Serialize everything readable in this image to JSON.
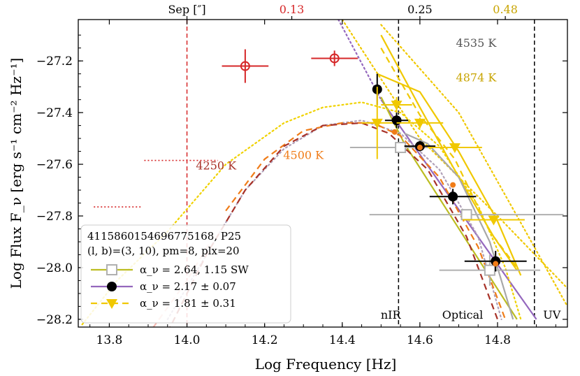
{
  "chart_data": {
    "type": "scatter",
    "title": "",
    "xlabel": "Log Frequency [Hz]",
    "ylabel": "Log Flux F_ν [erg s⁻¹ cm⁻² Hz⁻¹]",
    "xlim": [
      13.72,
      14.98
    ],
    "ylim": [
      -28.23,
      -27.04
    ],
    "x_ticks": [
      13.8,
      14.0,
      14.2,
      14.4,
      14.6,
      14.8
    ],
    "x_tick_labels": [
      "13.8",
      "14.0",
      "14.2",
      "14.4",
      "14.6",
      "14.8"
    ],
    "y_ticks": [
      -27.2,
      -27.4,
      -27.6,
      -27.8,
      -28.0,
      -28.2
    ],
    "y_tick_labels": [
      "−27.2",
      "−27.4",
      "−27.6",
      "−27.8",
      "−28.0",
      "−28.2"
    ],
    "top_axis": {
      "label": "Sep [″]",
      "ticks": [
        {
          "x": 14.0,
          "label": "Sep [″]",
          "color": "#000000"
        },
        {
          "x": 14.27,
          "label": "0.13",
          "color": "#d62728"
        },
        {
          "x": 14.6,
          "label": "0.25",
          "color": "#000000"
        },
        {
          "x": 14.82,
          "label": "0.48",
          "color": "#c8a400"
        }
      ]
    },
    "vlines": [
      {
        "x": 14.0,
        "color": "#d62728",
        "style": "dashed"
      },
      {
        "x": 14.545,
        "color": "#000000",
        "style": "dashed"
      },
      {
        "x": 14.895,
        "color": "#000000",
        "style": "dashed"
      }
    ],
    "band_labels": [
      {
        "text": "nIR",
        "x": 14.525
      },
      {
        "text": "Optical",
        "x": 14.71
      },
      {
        "text": "UV",
        "x": 14.94
      }
    ],
    "temperature_labels": [
      {
        "text": "4535 K",
        "x": 14.745,
        "y": -27.145,
        "color": "#555555"
      },
      {
        "text": "4874 K",
        "x": 14.745,
        "y": -27.28,
        "color": "#c8a400"
      },
      {
        "text": "4500 K",
        "x": 14.3,
        "y": -27.58,
        "color": "#f07c18"
      },
      {
        "text": "4250 K",
        "x": 14.075,
        "y": -27.62,
        "color": "#a83228"
      }
    ],
    "series": [
      {
        "name": "upper limits (red)",
        "color": "#d62728",
        "marker": "dotted-hline",
        "points": [
          {
            "x0": 13.89,
            "x1": 14.08,
            "y": -27.585
          },
          {
            "x0": 13.76,
            "x1": 13.885,
            "y": -27.765
          }
        ]
      },
      {
        "name": "red circles",
        "color": "#d62728",
        "marker": "open-circle",
        "points": [
          {
            "x": 14.15,
            "y": -27.22,
            "xerr": 0.06,
            "yerr": 0.065
          },
          {
            "x": 14.38,
            "y": -27.19,
            "xerr": 0.06,
            "yerr": 0.03
          }
        ]
      },
      {
        "name": "SW",
        "label": "α_ν = 2.64, 1.15 SW",
        "color": "#b0b0b0",
        "marker": "open-square",
        "points": [
          {
            "x": 14.55,
            "y": -27.535,
            "xerr": 0.13,
            "yerr": 0.02
          },
          {
            "x": 14.72,
            "y": -27.795,
            "xerr": 0.25,
            "yerr": 0.02
          },
          {
            "x": 14.78,
            "y": -28.01,
            "xerr": 0.13,
            "yerr": 0.06
          }
        ]
      },
      {
        "name": "black",
        "label": "α_ν = 2.17 ± 0.07",
        "color": "#000000",
        "marker": "filled-circle",
        "points": [
          {
            "x": 14.49,
            "y": -27.31,
            "xerr": 0.0,
            "yerr": 0.06
          },
          {
            "x": 14.54,
            "y": -27.43,
            "xerr": 0.03,
            "yerr": 0.03
          },
          {
            "x": 14.6,
            "y": -27.53,
            "xerr": 0.04,
            "yerr": 0.02
          },
          {
            "x": 14.685,
            "y": -27.725,
            "xerr": 0.06,
            "yerr": 0.03
          },
          {
            "x": 14.795,
            "y": -27.975,
            "xerr": 0.08,
            "yerr": 0.04
          }
        ]
      },
      {
        "name": "yellow",
        "label": "α_ν = 1.81 ± 0.31",
        "color": "#f0c800",
        "marker": "filled-triangle-down",
        "points": [
          {
            "x": 14.49,
            "y": -27.44,
            "xerr": 0.04,
            "yerr": 0.14
          },
          {
            "x": 14.54,
            "y": -27.37,
            "xerr": 0.04,
            "yerr": 0.03
          },
          {
            "x": 14.6,
            "y": -27.44,
            "xerr": 0.06,
            "yerr": 0.02
          },
          {
            "x": 14.69,
            "y": -27.535,
            "xerr": 0.07,
            "yerr": 0.0
          },
          {
            "x": 14.79,
            "y": -27.815,
            "xerr": 0.08,
            "yerr": 0.0
          }
        ]
      },
      {
        "name": "orange small markers",
        "color": "#f07c18",
        "marker": "small-star",
        "points": [
          {
            "x": 14.535,
            "y": -27.475
          },
          {
            "x": 14.6,
            "y": -27.535
          },
          {
            "x": 14.685,
            "y": -27.68
          },
          {
            "x": 14.795,
            "y": -27.985
          }
        ]
      }
    ],
    "curves": [
      {
        "name": "purple fit",
        "color": "#9467bd",
        "style": "solid",
        "points": [
          [
            14.5,
            -27.35
          ],
          [
            14.9,
            -28.2
          ]
        ]
      },
      {
        "name": "purple fit extension",
        "color": "#9467bd",
        "style": "dotted",
        "points": [
          [
            14.39,
            -27.04
          ],
          [
            14.5,
            -27.35
          ]
        ]
      },
      {
        "name": "olive fit",
        "color": "#bcbd22",
        "style": "solid",
        "points": [
          [
            14.5,
            -27.34
          ],
          [
            14.56,
            -27.52
          ],
          [
            14.85,
            -28.2
          ]
        ]
      },
      {
        "name": "yellow fit",
        "color": "#f0c800",
        "style": "solid",
        "points": [
          [
            14.49,
            -27.25
          ],
          [
            14.6,
            -27.32
          ],
          [
            14.7,
            -27.55
          ],
          [
            14.8,
            -27.82
          ],
          [
            14.86,
            -28.03
          ]
        ]
      },
      {
        "name": "yellow fit 2",
        "color": "#f0c800",
        "style": "solid",
        "points": [
          [
            14.5,
            -27.1
          ],
          [
            14.6,
            -27.38
          ],
          [
            14.7,
            -27.65
          ],
          [
            14.79,
            -27.88
          ],
          [
            14.85,
            -28.01
          ]
        ]
      },
      {
        "name": "yellow dashed",
        "color": "#f0c800",
        "style": "dashed",
        "points": [
          [
            14.5,
            -27.15
          ],
          [
            14.6,
            -27.41
          ],
          [
            14.69,
            -27.58
          ],
          [
            14.78,
            -27.86
          ],
          [
            14.85,
            -28.0
          ]
        ]
      },
      {
        "name": "yellow dotted right",
        "color": "#f0c800",
        "style": "dotted",
        "points": [
          [
            14.4,
            -27.04
          ],
          [
            14.6,
            -27.5
          ],
          [
            14.8,
            -27.8
          ],
          [
            14.98,
            -28.08
          ]
        ]
      },
      {
        "name": "yellow dotted far",
        "color": "#f0c800",
        "style": "dotted",
        "points": [
          [
            14.5,
            -27.06
          ],
          [
            14.7,
            -27.4
          ],
          [
            14.85,
            -27.8
          ],
          [
            14.98,
            -28.15
          ]
        ]
      },
      {
        "name": "gray fit",
        "color": "#a8a8a8",
        "style": "solid",
        "points": [
          [
            14.56,
            -27.48
          ],
          [
            14.62,
            -27.52
          ],
          [
            14.7,
            -27.65
          ],
          [
            14.78,
            -27.9
          ],
          [
            14.84,
            -28.2
          ]
        ]
      },
      {
        "name": "blackbody 4874 K",
        "color": "#f0d200",
        "style": "dotted",
        "points": [
          [
            13.73,
            -28.22
          ],
          [
            13.82,
            -28.05
          ],
          [
            13.95,
            -27.86
          ],
          [
            14.1,
            -27.6
          ],
          [
            14.25,
            -27.44
          ],
          [
            14.35,
            -27.38
          ],
          [
            14.45,
            -27.36
          ],
          [
            14.55,
            -27.4
          ],
          [
            14.65,
            -27.53
          ],
          [
            14.75,
            -27.76
          ],
          [
            14.82,
            -28.0
          ],
          [
            14.86,
            -28.2
          ]
        ]
      },
      {
        "name": "blackbody 4535 K",
        "color": "#b0a0b8",
        "style": "dotted",
        "points": [
          [
            13.95,
            -28.2
          ],
          [
            14.05,
            -27.95
          ],
          [
            14.15,
            -27.7
          ],
          [
            14.25,
            -27.54
          ],
          [
            14.35,
            -27.45
          ],
          [
            14.45,
            -27.43
          ],
          [
            14.55,
            -27.48
          ],
          [
            14.65,
            -27.62
          ],
          [
            14.75,
            -27.88
          ],
          [
            14.81,
            -28.2
          ]
        ]
      },
      {
        "name": "blackbody 4500 K",
        "color": "#f07c18",
        "style": "dashed",
        "points": [
          [
            14.1,
            -27.78
          ],
          [
            14.2,
            -27.58
          ],
          [
            14.3,
            -27.47
          ],
          [
            14.4,
            -27.44
          ],
          [
            14.48,
            -27.44
          ],
          [
            14.55,
            -27.49
          ],
          [
            14.65,
            -27.65
          ],
          [
            14.75,
            -27.92
          ],
          [
            14.82,
            -28.2
          ]
        ]
      },
      {
        "name": "blackbody 4250 K",
        "color": "#a83228",
        "style": "dashed",
        "points": [
          [
            13.95,
            -28.25
          ],
          [
            14.05,
            -27.95
          ],
          [
            14.15,
            -27.7
          ],
          [
            14.25,
            -27.53
          ],
          [
            14.35,
            -27.45
          ],
          [
            14.45,
            -27.44
          ],
          [
            14.52,
            -27.48
          ],
          [
            14.62,
            -27.62
          ],
          [
            14.72,
            -27.88
          ],
          [
            14.8,
            -28.2
          ]
        ]
      },
      {
        "name": "faint pink dashed",
        "color": "#f4b8b0",
        "style": "dashed",
        "points": [
          [
            13.88,
            -28.3
          ],
          [
            14.0,
            -28.05
          ],
          [
            14.06,
            -27.9
          ]
        ]
      }
    ],
    "legend": {
      "placement": "bottom-left",
      "lines": [
        "4115860154696775168, P25",
        "(l, b)=(3, 10), pm=8, plx=20"
      ],
      "entries": [
        {
          "label": "α_ν = 2.64, 1.15 SW",
          "color": "#bcbd22",
          "marker_color": "#b0b0b0",
          "marker": "open-square",
          "style": "solid"
        },
        {
          "label": "α_ν = 2.17 ± 0.07",
          "color": "#9467bd",
          "marker_color": "#000000",
          "marker": "filled-circle",
          "style": "solid"
        },
        {
          "label": "α_ν = 1.81 ± 0.31",
          "color": "#f0c800",
          "marker_color": "#f0c800",
          "marker": "filled-triangle-down",
          "style": "dashed"
        }
      ]
    }
  }
}
